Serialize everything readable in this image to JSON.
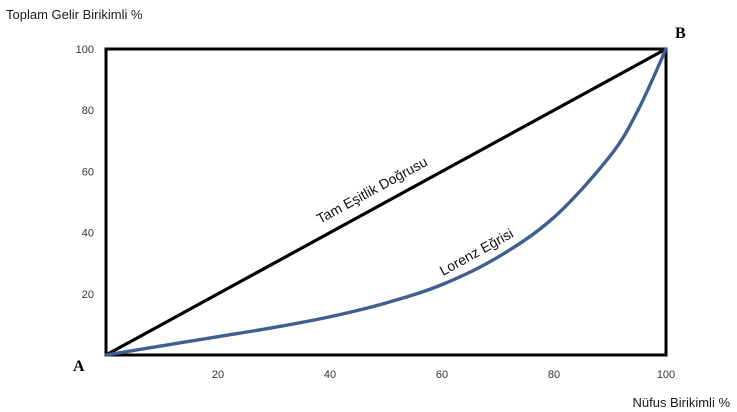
{
  "chart_data": {
    "type": "line",
    "ylabel": "Toplam Gelir Birikimli %",
    "xlabel": "Nüfus Birikimli %",
    "xlim": [
      0,
      100
    ],
    "ylim": [
      0,
      100
    ],
    "xticks": [
      20,
      40,
      60,
      80,
      100
    ],
    "yticks": [
      20,
      40,
      60,
      80,
      100
    ],
    "grid": false,
    "corner_labels": {
      "origin": "A",
      "top_right": "B"
    },
    "series": [
      {
        "name": "Tam Eşitlik Doğrusu",
        "color": "#000000",
        "x": [
          0,
          100
        ],
        "y": [
          0,
          100
        ]
      },
      {
        "name": "Lorenz Eğrisi",
        "color": "#3f5f8f",
        "x": [
          0,
          10,
          20,
          30,
          40,
          50,
          60,
          70,
          80,
          90,
          95,
          100
        ],
        "y": [
          0,
          3,
          6,
          9,
          12.5,
          17,
          23,
          32,
          45,
          65,
          80,
          100
        ]
      }
    ]
  }
}
